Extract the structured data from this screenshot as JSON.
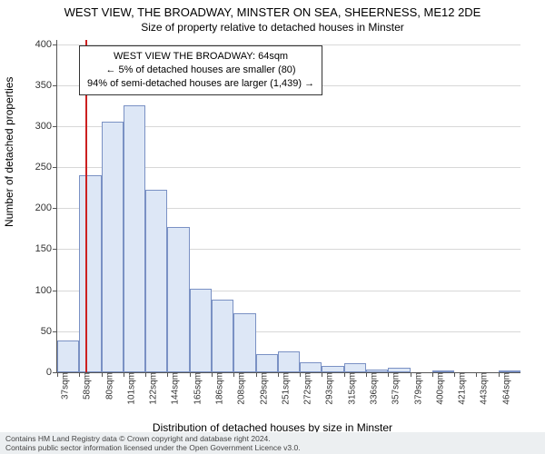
{
  "title": "WEST VIEW, THE BROADWAY, MINSTER ON SEA, SHEERNESS, ME12 2DE",
  "subtitle": "Size of property relative to detached houses in Minster",
  "ylabel": "Number of detached properties",
  "xlabel": "Distribution of detached houses by size in Minster",
  "chart": {
    "type": "histogram",
    "ylim": [
      0,
      405
    ],
    "yticks": [
      0,
      50,
      100,
      150,
      200,
      250,
      300,
      350,
      400
    ],
    "xtick_labels": [
      "37sqm",
      "58sqm",
      "80sqm",
      "101sqm",
      "122sqm",
      "144sqm",
      "165sqm",
      "186sqm",
      "208sqm",
      "229sqm",
      "251sqm",
      "272sqm",
      "293sqm",
      "315sqm",
      "336sqm",
      "357sqm",
      "379sqm",
      "400sqm",
      "421sqm",
      "443sqm",
      "464sqm"
    ],
    "values": [
      39,
      240,
      305,
      325,
      222,
      177,
      102,
      88,
      72,
      22,
      26,
      12,
      8,
      11,
      3,
      6,
      0,
      1,
      0,
      0,
      1
    ],
    "bar_fill": "#dde7f6",
    "bar_stroke": "#7a91c4",
    "grid_color": "#d8d8d8",
    "axis_color": "#555555",
    "background": "#ffffff",
    "marker_color": "#cc2020",
    "marker_bin_index": 1,
    "marker_fraction_in_bin": 0.29
  },
  "annotation": {
    "line1": "WEST VIEW THE BROADWAY: 64sqm",
    "line2": "← 5% of detached houses are smaller (80)",
    "line3": "94% of semi-detached houses are larger (1,439) →"
  },
  "footer": {
    "line1": "Contains HM Land Registry data © Crown copyright and database right 2024.",
    "line2": "Contains public sector information licensed under the Open Government Licence v3.0."
  }
}
